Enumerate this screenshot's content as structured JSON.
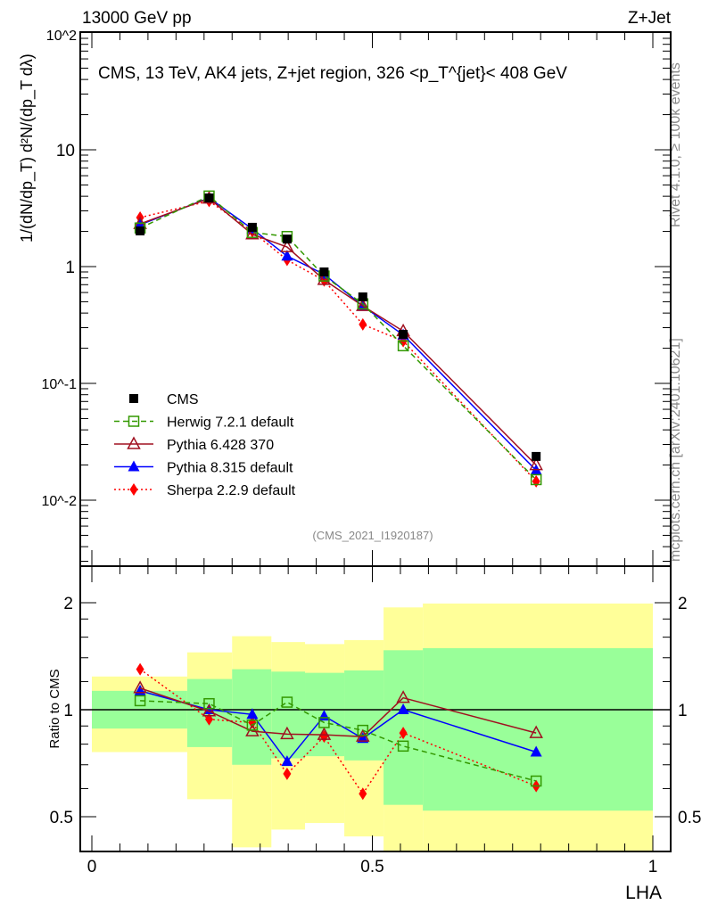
{
  "header": {
    "left": "13000 GeV pp",
    "right": "Z+Jet"
  },
  "side": {
    "rivet": "Rivet 4.1.0, ≥ 100k events",
    "mcplots": "mcplots.cern.ch [arXiv:2401.10621]"
  },
  "analysis_id": "(CMS_2021_I1920187)",
  "colors": {
    "cms": "#000000",
    "herwig": "#339900",
    "pythia6": "#a01020",
    "pythia8": "#0000ff",
    "sherpa": "#ff0000",
    "band1": "#99ff99",
    "band2": "#ffff99"
  },
  "chart_data": [
    {
      "type": "line",
      "title": "CMS, 13 TeV, AK4 jets, Z+jet region, 326 <p_T^{jet}< 408 GeV",
      "ylabel": "1/(dN/dp_T) d²N/(dp_T dλ)",
      "yscale": "log",
      "ylim": [
        0.0027,
        100
      ],
      "ytick_labels": [
        "10^-2",
        "10^-1",
        "1",
        "10",
        "10^2"
      ],
      "ytick_values": [
        0.01,
        0.1,
        1,
        10,
        100
      ],
      "legend_position": "bottom-left",
      "x": [
        0.086,
        0.209,
        0.286,
        0.348,
        0.414,
        0.483,
        0.555,
        0.792
      ],
      "series": [
        {
          "key": "cms",
          "name": "CMS",
          "values": [
            2.02,
            3.87,
            2.17,
            1.72,
            0.9,
            0.55,
            0.263,
            0.0237
          ]
        },
        {
          "key": "herwig",
          "name": "Herwig 7.2.1 default",
          "values": [
            2.14,
            4.02,
            1.96,
            1.81,
            0.83,
            0.48,
            0.21,
            0.015
          ]
        },
        {
          "key": "pythia6",
          "name": "Pythia 6.428 370",
          "values": [
            2.32,
            3.83,
            1.89,
            1.47,
            0.77,
            0.46,
            0.28,
            0.02
          ]
        },
        {
          "key": "pythia8",
          "name": "Pythia 8.315 default",
          "values": [
            2.28,
            3.87,
            2.1,
            1.23,
            0.86,
            0.46,
            0.26,
            0.018
          ]
        },
        {
          "key": "sherpa",
          "name": "Sherpa 2.2.9 default",
          "values": [
            2.63,
            3.64,
            2.0,
            1.14,
            0.76,
            0.32,
            0.23,
            0.0145
          ]
        }
      ]
    },
    {
      "type": "line",
      "ylabel": "Ratio to CMS",
      "xlabel": "LHA",
      "yscale": "log",
      "ylim": [
        0.4,
        2.5
      ],
      "xlim": [
        -0.02,
        1.03
      ],
      "xtick_labels": [
        "0",
        "0.5",
        "1"
      ],
      "xtick_values": [
        0,
        0.5,
        1
      ],
      "ytick_labels": [
        "0.5",
        "1",
        "2"
      ],
      "ytick_values": [
        0.5,
        1,
        2
      ],
      "bin_edges": [
        0,
        0.17,
        0.25,
        0.32,
        0.38,
        0.45,
        0.52,
        0.59,
        1.0
      ],
      "band_1sigma": [
        [
          0.885,
          1.13
        ],
        [
          0.785,
          1.22
        ],
        [
          0.7,
          1.3
        ],
        [
          0.73,
          1.28
        ],
        [
          0.74,
          1.27
        ],
        [
          0.72,
          1.29
        ],
        [
          0.54,
          1.47
        ],
        [
          0.52,
          1.49
        ]
      ],
      "band_2sigma": [
        [
          0.76,
          1.24
        ],
        [
          0.56,
          1.45
        ],
        [
          0.41,
          1.61
        ],
        [
          0.46,
          1.55
        ],
        [
          0.48,
          1.53
        ],
        [
          0.44,
          1.57
        ],
        [
          0.35,
          1.94
        ],
        [
          0.35,
          1.99
        ]
      ],
      "x": [
        0.086,
        0.209,
        0.286,
        0.348,
        0.414,
        0.483,
        0.555,
        0.792
      ],
      "series": [
        {
          "key": "herwig",
          "name": "Herwig 7.2.1 default",
          "values": [
            1.06,
            1.04,
            0.905,
            1.05,
            0.92,
            0.875,
            0.79,
            0.63
          ]
        },
        {
          "key": "pythia6",
          "name": "Pythia 6.428 370",
          "values": [
            1.15,
            0.99,
            0.87,
            0.854,
            0.85,
            0.84,
            1.08,
            0.86
          ]
        },
        {
          "key": "pythia8",
          "name": "Pythia 8.315 default",
          "values": [
            1.13,
            1.0,
            0.97,
            0.715,
            0.96,
            0.83,
            1.0,
            0.76
          ]
        },
        {
          "key": "sherpa",
          "name": "Sherpa 2.2.9 default",
          "values": [
            1.3,
            0.94,
            0.92,
            0.66,
            0.84,
            0.58,
            0.86,
            0.61
          ]
        }
      ]
    }
  ]
}
